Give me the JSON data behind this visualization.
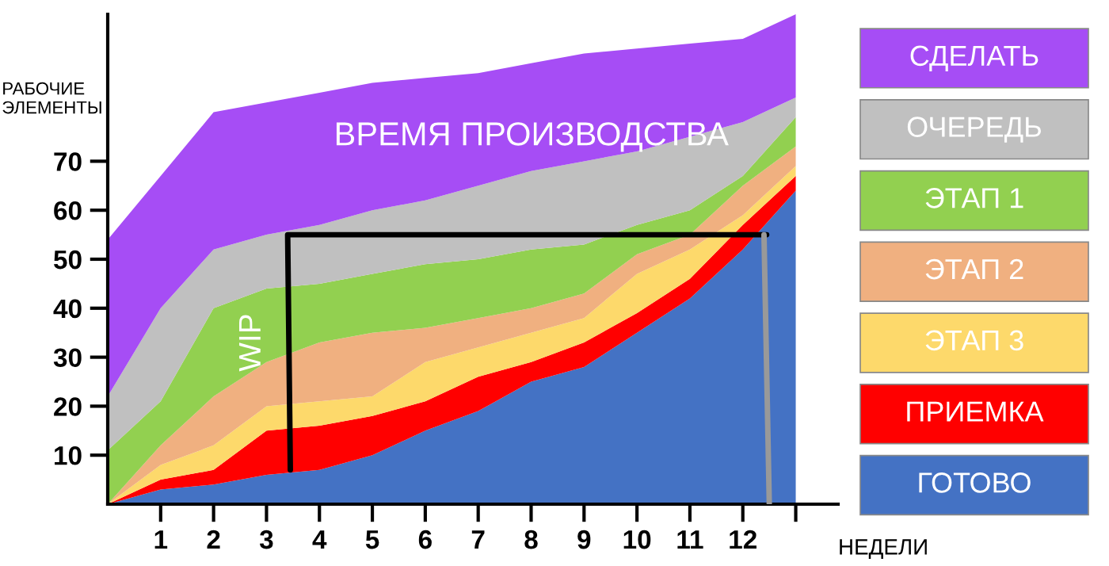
{
  "chart_data": {
    "type": "area",
    "stacked": true,
    "xlabel": "НЕДЕЛИ",
    "ylabel": "РАБОЧИЕ\nЭЛЕМЕНТЫ",
    "x": [
      0,
      1,
      2,
      3,
      4,
      5,
      6,
      7,
      8,
      9,
      10,
      11,
      12,
      13
    ],
    "series": [
      {
        "name": "ГОТОВО",
        "color": "#4472c4",
        "values": [
          0,
          3,
          4,
          6,
          7,
          10,
          15,
          19,
          25,
          28,
          35,
          42,
          52,
          64
        ]
      },
      {
        "name": "ПРИЕМКА",
        "color": "#ff0000",
        "values": [
          0,
          2,
          3,
          9,
          9,
          8,
          6,
          7,
          4,
          5,
          4,
          4,
          5,
          3
        ]
      },
      {
        "name": "ЭТАП 3",
        "color": "#fdd96b",
        "values": [
          0,
          3,
          5,
          5,
          5,
          4,
          8,
          6,
          6,
          5,
          8,
          6,
          2,
          2
        ]
      },
      {
        "name": "ЭТАП 2",
        "color": "#f0b080",
        "values": [
          0,
          4,
          10,
          9,
          12,
          13,
          7,
          6,
          5,
          5,
          4,
          3,
          6,
          4
        ]
      },
      {
        "name": "ЭТАП 1",
        "color": "#92d050",
        "values": [
          11,
          9,
          18,
          15,
          12,
          12,
          13,
          12,
          12,
          10,
          6,
          5,
          2,
          6
        ]
      },
      {
        "name": "ОЧЕРЕДЬ",
        "color": "#c0c0c0",
        "values": [
          11,
          19,
          12,
          11,
          12,
          13,
          13,
          15,
          16,
          17,
          15,
          15,
          11,
          4
        ]
      },
      {
        "name": "СДЕЛАТЬ",
        "color": "#a64df5",
        "values": [
          32,
          27,
          28,
          27,
          27,
          26,
          25,
          23,
          22,
          22,
          21,
          19,
          17,
          17
        ]
      },
      {
        "type": "line",
        "color": "#000000",
        "x": [
          3.45,
          3.4,
          12.45
        ],
        "values": [
          7,
          55,
          55
        ]
      },
      {
        "type": "line",
        "color": "#999999",
        "x": [
          12.5,
          12.4
        ],
        "values": [
          0,
          55
        ]
      }
    ],
    "xlim": [
      0,
      13.8
    ],
    "ylim": [
      0,
      100
    ],
    "xticks": [
      1,
      2,
      3,
      4,
      5,
      6,
      7,
      8,
      9,
      10,
      11,
      12,
      {
        "value": 13,
        "label": null
      }
    ],
    "yticks": [
      10,
      20,
      30,
      40,
      50,
      60,
      70
    ],
    "annotations": [
      "ВРЕМЯ ПРОИЗВОДСТВА",
      {
        "text": "WIP",
        "x": 3.4,
        "y": 33
      }
    ],
    "grid": false,
    "legend": "right"
  }
}
